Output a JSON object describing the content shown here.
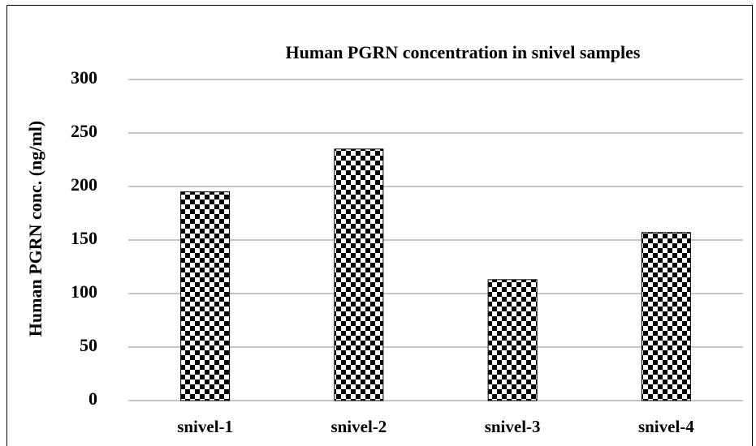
{
  "chart_data": {
    "type": "bar",
    "title": "Human  PGRN concentration  in snivel samples",
    "y_label": "Human  PGRN conc. (ng/ml)",
    "categories": [
      "snivel-1",
      "snivel-2",
      "snivel-3",
      "snivel-4"
    ],
    "values": [
      195,
      235,
      113,
      157
    ],
    "color": "#000000",
    "ylim": [
      0,
      300
    ],
    "yticks": [
      0,
      50,
      100,
      150,
      200,
      250,
      300
    ],
    "grid": true
  }
}
